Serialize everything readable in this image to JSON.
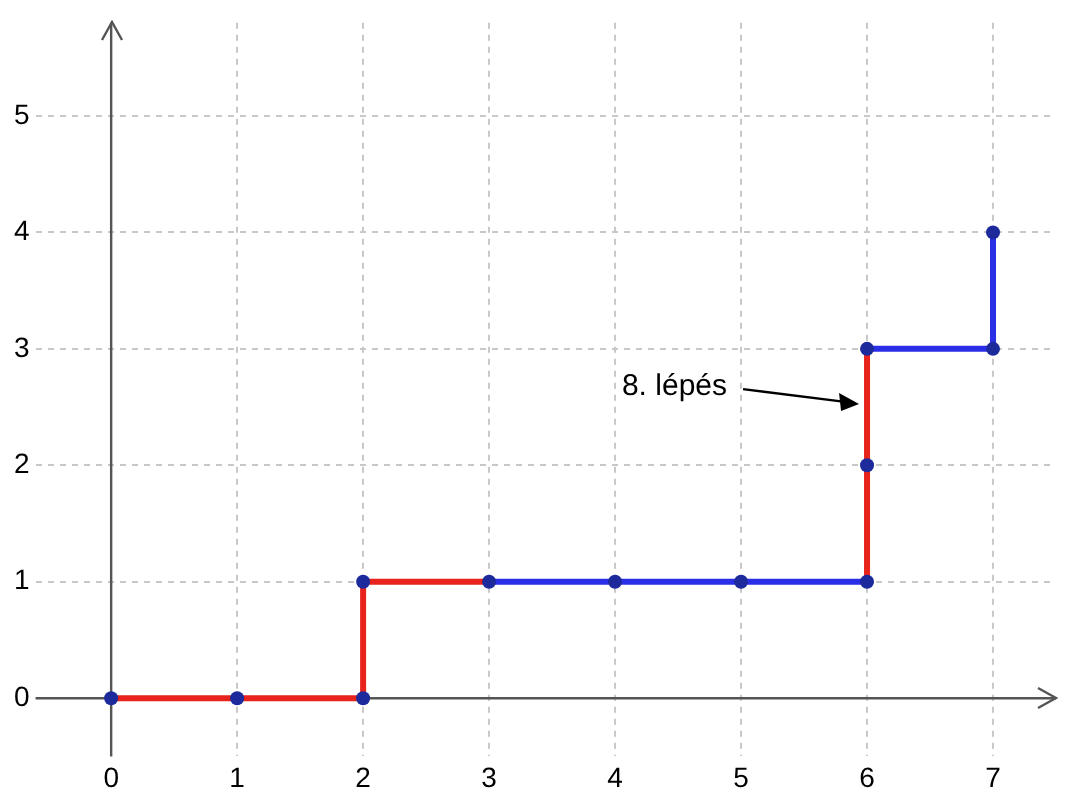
{
  "chart_data": {
    "type": "line",
    "series": [
      {
        "color": "#e8231c",
        "x": [
          0,
          1,
          2,
          2,
          3
        ],
        "values": [
          0,
          0,
          0,
          1,
          1
        ],
        "marker": "none"
      },
      {
        "color": "#2a2ee6",
        "x": [
          3,
          4,
          5,
          6
        ],
        "values": [
          1,
          1,
          1,
          1
        ],
        "marker": "none"
      },
      {
        "color": "#e8231c",
        "x": [
          6,
          6,
          6
        ],
        "values": [
          1,
          2,
          3
        ],
        "marker": "none"
      },
      {
        "color": "#2a2ee6",
        "x": [
          6,
          7,
          7
        ],
        "values": [
          3,
          3,
          4
        ],
        "marker": "none"
      },
      {
        "type": "scatter",
        "color": "#1c2a9c",
        "x": [
          0,
          1,
          2,
          2,
          3,
          4,
          5,
          6,
          6,
          6,
          7,
          7
        ],
        "values": [
          0,
          0,
          0,
          1,
          1,
          1,
          1,
          1,
          2,
          3,
          3,
          4
        ],
        "marker": "circle"
      }
    ],
    "xlim": [
      -0.6,
      7.5
    ],
    "ylim": [
      -0.5,
      5.8
    ],
    "xticks": [
      0,
      1,
      2,
      3,
      4,
      5,
      6,
      7
    ],
    "yticks": [
      0,
      1,
      2,
      3,
      4,
      5
    ],
    "grid": true,
    "legend": false,
    "annotations": [
      {
        "text": "8. lépés",
        "x": 6,
        "y": 2.5
      }
    ]
  }
}
